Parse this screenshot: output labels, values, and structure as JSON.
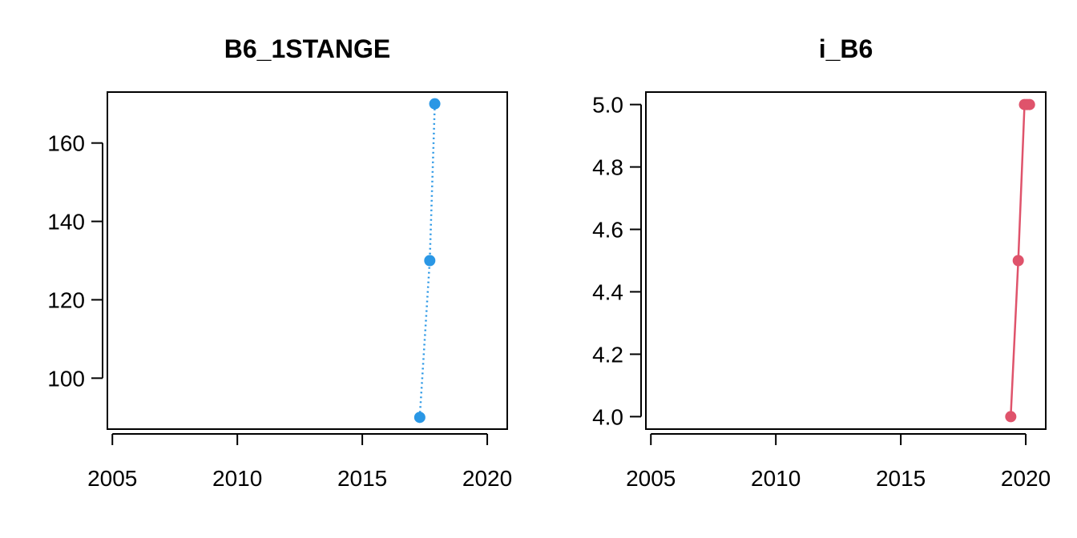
{
  "chart_data": [
    {
      "type": "line",
      "title": "B6_1STANGE",
      "xlabel": "",
      "ylabel": "",
      "xlim": [
        2004.8,
        2020.8
      ],
      "ylim": [
        87,
        173
      ],
      "xticks": [
        2005,
        2010,
        2015,
        2020
      ],
      "xtick_labels": [
        "2005",
        "2010",
        "2015",
        "2020"
      ],
      "yticks": [
        100,
        120,
        140,
        160
      ],
      "ytick_labels": [
        "100",
        "120",
        "140",
        "160"
      ],
      "grid": false,
      "legend": "none",
      "series": [
        {
          "color": "#2a97e5",
          "line_style": "dotted",
          "marker": "filled-circle",
          "x": [
            2017.3,
            2017.7,
            2017.9
          ],
          "y": [
            90,
            130,
            170
          ]
        }
      ]
    },
    {
      "type": "line",
      "title": "i_B6",
      "xlabel": "",
      "ylabel": "",
      "xlim": [
        2004.8,
        2020.8
      ],
      "ylim": [
        3.96,
        5.04
      ],
      "xticks": [
        2005,
        2010,
        2015,
        2020
      ],
      "xtick_labels": [
        "2005",
        "2010",
        "2015",
        "2020"
      ],
      "yticks": [
        4.0,
        4.2,
        4.4,
        4.6,
        4.8,
        5.0
      ],
      "ytick_labels": [
        "4.0",
        "4.2",
        "4.4",
        "4.6",
        "4.8",
        "5.0"
      ],
      "grid": false,
      "legend": "none",
      "series": [
        {
          "color": "#df536b",
          "line_style": "solid",
          "marker": "filled-circle",
          "x": [
            2019.4,
            2019.7,
            2019.95,
            2020.05,
            2020.15
          ],
          "y": [
            4.0,
            4.5,
            5.0,
            5.0,
            5.0
          ]
        }
      ]
    }
  ]
}
